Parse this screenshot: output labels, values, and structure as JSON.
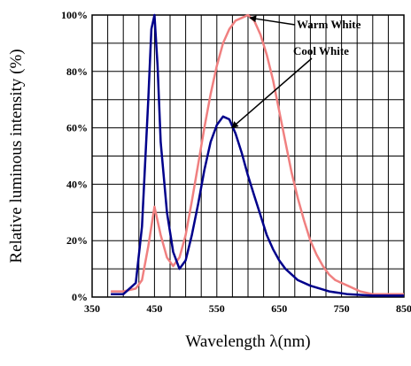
{
  "chart_data": {
    "type": "line",
    "title": "",
    "xlabel": "Wavelength λ(nm)",
    "ylabel": "Relative luminous intensity (%)",
    "xlim": [
      350,
      850
    ],
    "ylim": [
      0,
      100
    ],
    "x_ticks": [
      350,
      450,
      550,
      650,
      750,
      850
    ],
    "x_tick_labels": [
      "350",
      "450",
      "550",
      "650",
      "750",
      "850"
    ],
    "y_ticks": [
      0,
      20,
      40,
      60,
      80,
      100
    ],
    "y_tick_labels": [
      "0%",
      "20%",
      "40%",
      "60%",
      "80%",
      "100%"
    ],
    "grid": true,
    "colors": {
      "warm_white": "#f08080",
      "cool_white": "#00008b"
    },
    "series": [
      {
        "name": "Warm White",
        "color": "#f08080",
        "points": [
          [
            380,
            2
          ],
          [
            400,
            2
          ],
          [
            420,
            3
          ],
          [
            430,
            6
          ],
          [
            440,
            18
          ],
          [
            450,
            32
          ],
          [
            460,
            22
          ],
          [
            470,
            14
          ],
          [
            480,
            11
          ],
          [
            490,
            14
          ],
          [
            500,
            22
          ],
          [
            510,
            34
          ],
          [
            520,
            47
          ],
          [
            530,
            60
          ],
          [
            540,
            72
          ],
          [
            550,
            82
          ],
          [
            560,
            90
          ],
          [
            570,
            95
          ],
          [
            580,
            98
          ],
          [
            590,
            99
          ],
          [
            600,
            100
          ],
          [
            610,
            98
          ],
          [
            620,
            93
          ],
          [
            630,
            86
          ],
          [
            640,
            77
          ],
          [
            650,
            66
          ],
          [
            660,
            55
          ],
          [
            670,
            44
          ],
          [
            680,
            35
          ],
          [
            690,
            27
          ],
          [
            700,
            20
          ],
          [
            710,
            15
          ],
          [
            720,
            11
          ],
          [
            730,
            8
          ],
          [
            740,
            6
          ],
          [
            760,
            4
          ],
          [
            780,
            2
          ],
          [
            800,
            1
          ],
          [
            825,
            1
          ],
          [
            850,
            1
          ]
        ]
      },
      {
        "name": "Cool White",
        "color": "#00008b",
        "points": [
          [
            380,
            1
          ],
          [
            400,
            1
          ],
          [
            420,
            5
          ],
          [
            430,
            25
          ],
          [
            440,
            70
          ],
          [
            445,
            95
          ],
          [
            450,
            100
          ],
          [
            455,
            82
          ],
          [
            460,
            55
          ],
          [
            470,
            30
          ],
          [
            480,
            16
          ],
          [
            490,
            10
          ],
          [
            500,
            13
          ],
          [
            510,
            22
          ],
          [
            520,
            33
          ],
          [
            530,
            45
          ],
          [
            540,
            55
          ],
          [
            550,
            61
          ],
          [
            560,
            64
          ],
          [
            570,
            63
          ],
          [
            580,
            58
          ],
          [
            590,
            51
          ],
          [
            600,
            43
          ],
          [
            610,
            36
          ],
          [
            620,
            29
          ],
          [
            630,
            22
          ],
          [
            640,
            17
          ],
          [
            650,
            13
          ],
          [
            660,
            10
          ],
          [
            680,
            6
          ],
          [
            700,
            4
          ],
          [
            730,
            2
          ],
          [
            760,
            1
          ],
          [
            800,
            0.5
          ],
          [
            850,
            0.5
          ]
        ]
      }
    ],
    "annotations": [
      {
        "text": "Warm White",
        "series": "Warm White",
        "at_x": 603,
        "at_y": 99
      },
      {
        "text": "Cool White",
        "series": "Cool White",
        "at_x": 574,
        "at_y": 60
      }
    ]
  }
}
